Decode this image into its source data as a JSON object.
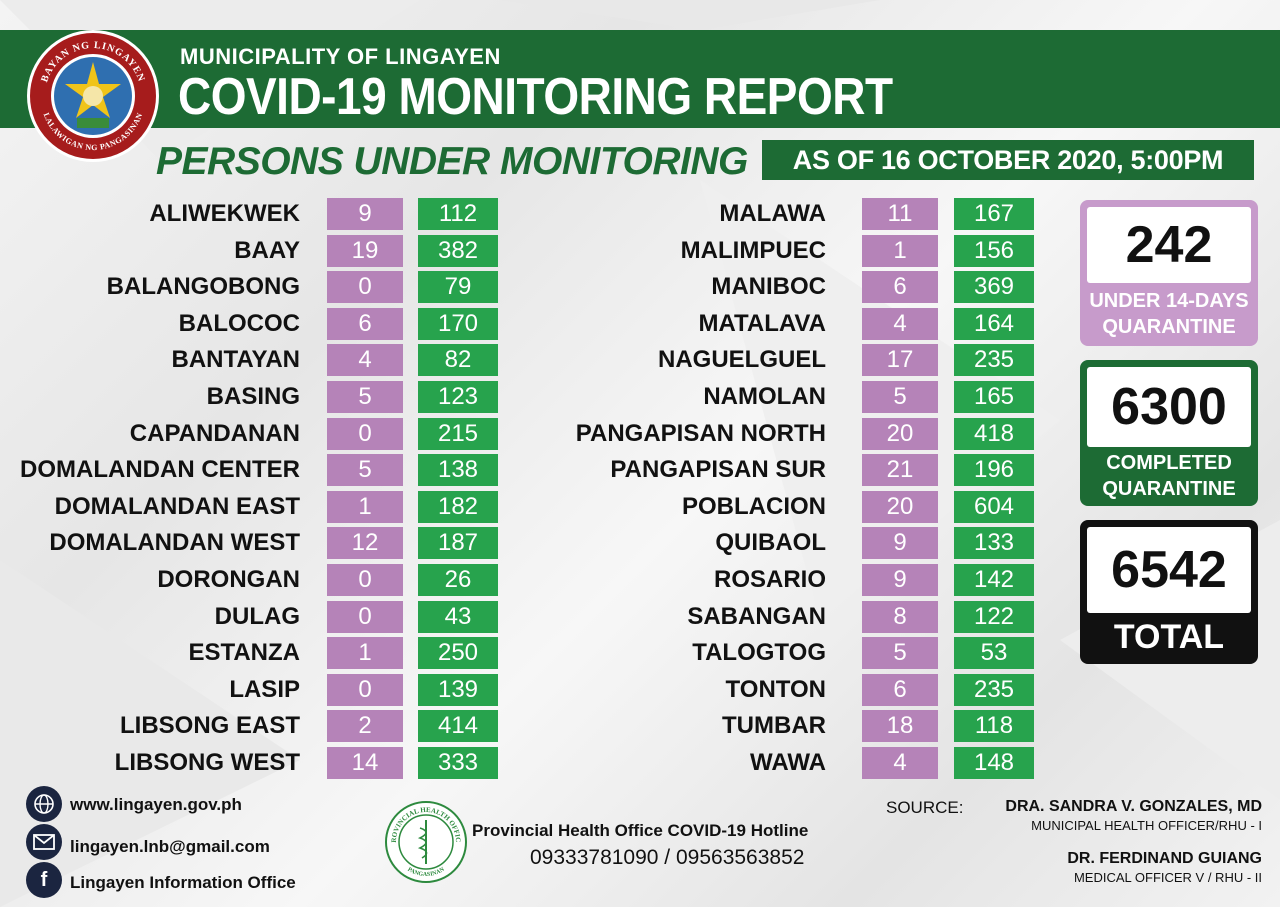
{
  "header": {
    "subtitle": "MUNICIPALITY OF LINGAYEN",
    "title": "COVID-19 MONITORING REPORT",
    "seal_text_top": "BAYAN NG LINGAYEN",
    "seal_text_bottom": "LALAWIGAN NG PANGASINAN"
  },
  "section_title": "PERSONS UNDER MONITORING",
  "as_of": "AS OF 16 OCTOBER 2020, 5:00PM",
  "colors": {
    "header_green": "#1d6b34",
    "cell_purple": "#b583b8",
    "cell_green": "#27a34d"
  },
  "barangays_left": [
    {
      "name": "ALIWEKWEK",
      "under": "9",
      "completed": "112"
    },
    {
      "name": "BAAY",
      "under": "19",
      "completed": "382"
    },
    {
      "name": "BALANGOBONG",
      "under": "0",
      "completed": "79"
    },
    {
      "name": "BALOCOC",
      "under": "6",
      "completed": "170"
    },
    {
      "name": "BANTAYAN",
      "under": "4",
      "completed": "82"
    },
    {
      "name": "BASING",
      "under": "5",
      "completed": "123"
    },
    {
      "name": "CAPANDANAN",
      "under": "0",
      "completed": "215"
    },
    {
      "name": "DOMALANDAN CENTER",
      "under": "5",
      "completed": "138"
    },
    {
      "name": "DOMALANDAN EAST",
      "under": "1",
      "completed": "182"
    },
    {
      "name": "DOMALANDAN WEST",
      "under": "12",
      "completed": "187"
    },
    {
      "name": "DORONGAN",
      "under": "0",
      "completed": "26"
    },
    {
      "name": "DULAG",
      "under": "0",
      "completed": "43"
    },
    {
      "name": "ESTANZA",
      "under": "1",
      "completed": "250"
    },
    {
      "name": "LASIP",
      "under": "0",
      "completed": "139"
    },
    {
      "name": "LIBSONG EAST",
      "under": "2",
      "completed": "414"
    },
    {
      "name": "LIBSONG WEST",
      "under": "14",
      "completed": "333"
    }
  ],
  "barangays_right": [
    {
      "name": "MALAWA",
      "under": "11",
      "completed": "167"
    },
    {
      "name": "MALIMPUEC",
      "under": "1",
      "completed": "156"
    },
    {
      "name": "MANIBOC",
      "under": "6",
      "completed": "369"
    },
    {
      "name": "MATALAVA",
      "under": "4",
      "completed": "164"
    },
    {
      "name": "NAGUELGUEL",
      "under": "17",
      "completed": "235"
    },
    {
      "name": "NAMOLAN",
      "under": "5",
      "completed": "165"
    },
    {
      "name": "PANGAPISAN NORTH",
      "under": "20",
      "completed": "418"
    },
    {
      "name": "PANGAPISAN SUR",
      "under": "21",
      "completed": "196"
    },
    {
      "name": "POBLACION",
      "under": "20",
      "completed": "604"
    },
    {
      "name": "QUIBAOL",
      "under": "9",
      "completed": "133"
    },
    {
      "name": "ROSARIO",
      "under": "9",
      "completed": "142"
    },
    {
      "name": "SABANGAN",
      "under": "8",
      "completed": "122"
    },
    {
      "name": "TALOGTOG",
      "under": "5",
      "completed": "53"
    },
    {
      "name": "TONTON",
      "under": "6",
      "completed": "235"
    },
    {
      "name": "TUMBAR",
      "under": "18",
      "completed": "118"
    },
    {
      "name": "WAWA",
      "under": "4",
      "completed": "148"
    }
  ],
  "summary": {
    "under_value": "242",
    "under_label_1": "UNDER 14-DAYS",
    "under_label_2": "QUARANTINE",
    "completed_value": "6300",
    "completed_label_1": "COMPLETED",
    "completed_label_2": "QUARANTINE",
    "total_value": "6542",
    "total_label": "TOTAL"
  },
  "footer": {
    "website": "www.lingayen.gov.ph",
    "email": "lingayen.lnb@gmail.com",
    "facebook": "Lingayen Information Office",
    "hotline_label": "Provincial Health Office COVID-19 Hotline",
    "hotline_numbers": "09333781090 / 09563563852",
    "pho_seal_top": "PROVINCIAL HEALTH OFFICE",
    "pho_seal_bottom": "PANGASINAN",
    "source_label": "SOURCE:",
    "source_1_name": "DRA. SANDRA V. GONZALES, MD",
    "source_1_title": "MUNICIPAL HEALTH OFFICER/RHU - I",
    "source_2_name": "DR. FERDINAND GUIANG",
    "source_2_title": "MEDICAL OFFICER V / RHU - II"
  }
}
